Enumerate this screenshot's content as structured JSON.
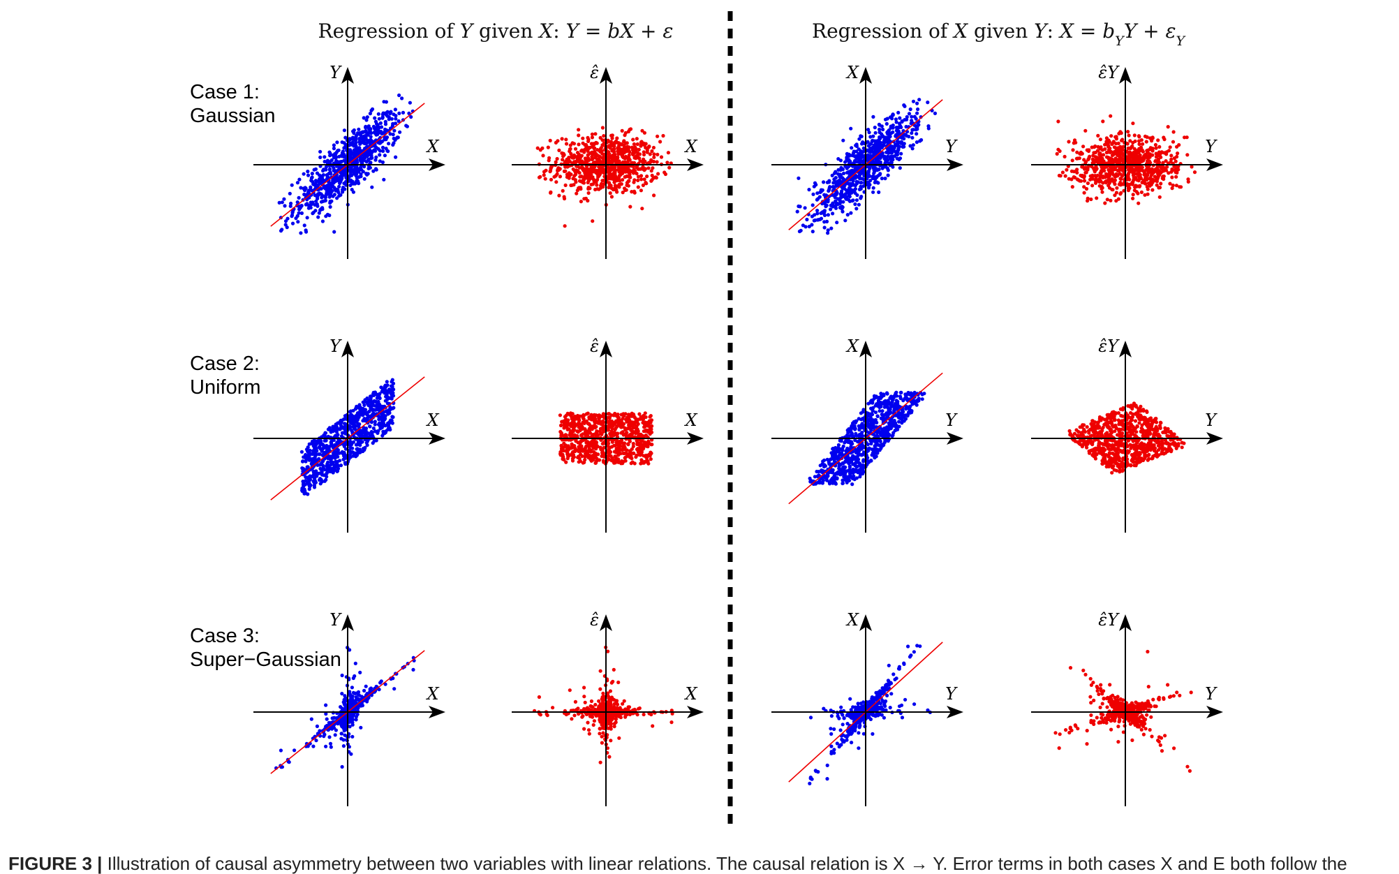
{
  "header": {
    "left_title": "Regression of Y given X: Y = bX + ε",
    "right_title": "Regression of X given Y: X = b_Y Y + ε_Y"
  },
  "cases": [
    {
      "line1": "Case 1:",
      "line2": "Gaussian",
      "distribution": "gaussian"
    },
    {
      "line1": "Case 2:",
      "line2": "Uniform",
      "distribution": "uniform"
    },
    {
      "line1": "Case 3:",
      "line2": "Super−Gaussian",
      "distribution": "super-gaussian"
    }
  ],
  "panel_labels": {
    "data_yx": {
      "x": "X",
      "y": "Y"
    },
    "resid_yx": {
      "x": "X",
      "y": "ε̂"
    },
    "data_xy": {
      "x": "Y",
      "y": "X"
    },
    "resid_xy": {
      "x": "Y",
      "y": "ε̂Y"
    }
  },
  "caption": {
    "lead": "FIGURE 3 |",
    "text": "Illustration of causal asymmetry between two variables with linear relations. The causal relation is X → Y. Error terms in both cases X and E both follow the"
  },
  "chart_data": {
    "type": "scatter",
    "title": "",
    "layout": "3 rows × 4 panels",
    "series_colors": {
      "data": "#0000ee",
      "residual": "#ee0000",
      "fit_line": "#ee0000"
    },
    "regression_slope_yx": 0.8,
    "regression_slope_xy": 0.8
  },
  "colors": {
    "axis": "#000000",
    "divider": "#000000"
  }
}
